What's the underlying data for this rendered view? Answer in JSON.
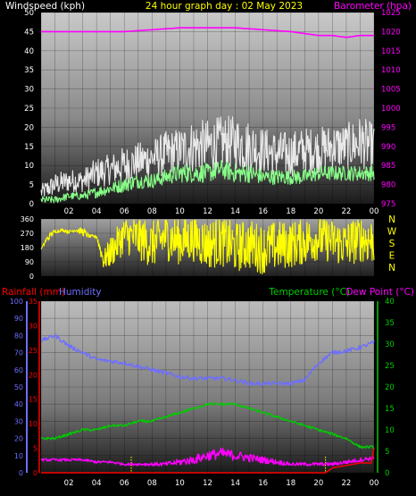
{
  "colors": {
    "background": "#000000",
    "windspeed_label": "#ffffff",
    "title": "#ffff00",
    "barometer": "#ff00ff",
    "wind_direction": "#ffff00",
    "compass_letters": "#ffff00",
    "rainfall": "#ff0000",
    "humidity": "#6e6eff",
    "temperature": "#00cc00",
    "dew_point": "#ff00ff",
    "gust": "#e8e8e8",
    "avg_wind": "#88ff88",
    "white_axis": "#ffffff"
  },
  "chart_data": [
    {
      "type": "line",
      "id": "wind-baro",
      "title": "24 hour graph day : 02 May 2023",
      "left_axis_label": "Windspeed (kph)",
      "right_axis_label": "Barometer (hpa)",
      "x_tick_labels": [
        "02",
        "04",
        "06",
        "08",
        "10",
        "12",
        "14",
        "16",
        "18",
        "20",
        "22",
        "00"
      ],
      "x_range_hours": [
        0,
        24
      ],
      "ylim_left": [
        0,
        50
      ],
      "y_ticks_left": [
        "0",
        "5",
        "10",
        "15",
        "20",
        "25",
        "30",
        "35",
        "40",
        "45",
        "50"
      ],
      "ylim_right": [
        975,
        1025
      ],
      "y_ticks_right": [
        "975",
        "980",
        "985",
        "990",
        "995",
        "1000",
        "1005",
        "1010",
        "1015",
        "1020",
        "1025"
      ],
      "grid": true,
      "series": [
        {
          "name": "Barometer",
          "axis": "right",
          "color": "#ff00ff",
          "x": [
            0,
            2,
            4,
            6,
            8,
            10,
            12,
            14,
            16,
            18,
            20,
            21,
            22,
            23,
            24
          ],
          "y": [
            1020,
            1020,
            1020,
            1020,
            1020.5,
            1021,
            1021,
            1021,
            1020.5,
            1020,
            1019,
            1019,
            1018.5,
            1019,
            1019
          ]
        },
        {
          "name": "Gust",
          "axis": "left",
          "color": "#e8e8e8",
          "noisy": true,
          "x": [
            0,
            1,
            2,
            3,
            4,
            5,
            6,
            7,
            8,
            9,
            10,
            11,
            12,
            13,
            14,
            15,
            16,
            17,
            18,
            19,
            20,
            21,
            22,
            23,
            24
          ],
          "y": [
            3,
            5,
            6,
            6,
            8,
            9,
            10,
            11,
            12,
            13,
            14,
            15,
            15,
            16,
            16,
            15,
            14,
            13,
            13,
            14,
            14,
            15,
            15,
            16,
            15
          ],
          "amp": [
            2,
            3,
            3,
            3,
            4,
            4,
            5,
            5,
            5,
            6,
            6,
            7,
            7,
            7,
            7,
            7,
            6,
            6,
            6,
            6,
            6,
            6,
            6,
            7,
            6
          ]
        },
        {
          "name": "Average wind",
          "axis": "left",
          "color": "#88ff88",
          "noisy": true,
          "x": [
            0,
            1,
            2,
            3,
            4,
            5,
            6,
            7,
            8,
            9,
            10,
            11,
            12,
            13,
            14,
            15,
            16,
            17,
            18,
            19,
            20,
            21,
            22,
            23,
            24
          ],
          "y": [
            1,
            1,
            2,
            2,
            3,
            4,
            5,
            6,
            6,
            7,
            8,
            8,
            8,
            9,
            8,
            8,
            7,
            7,
            7,
            7,
            8,
            8,
            8,
            8,
            8
          ],
          "amp": [
            1,
            1,
            1,
            1,
            1.5,
            1.5,
            2,
            2,
            2,
            2,
            2.5,
            2.5,
            2.5,
            2.5,
            2.5,
            2.5,
            2,
            2,
            2,
            2,
            2,
            2,
            2,
            2,
            2
          ]
        }
      ]
    },
    {
      "type": "line",
      "id": "wind-direction",
      "x_range_hours": [
        0,
        24
      ],
      "ylim": [
        0,
        360
      ],
      "y_ticks": [
        "0",
        "90",
        "180",
        "270",
        "360"
      ],
      "compass_labels": [
        "N",
        "W",
        "S",
        "E",
        "N"
      ],
      "grid": true,
      "series": [
        {
          "name": "Wind direction",
          "color": "#ffff00",
          "noisy": true,
          "x": [
            0,
            0.4,
            0.8,
            1,
            1.5,
            2,
            2.5,
            3,
            3.5,
            4,
            4.5,
            5,
            6,
            7,
            8,
            9,
            10,
            11,
            12,
            13,
            14,
            15,
            16,
            17,
            18,
            19,
            20,
            21,
            22,
            23,
            24
          ],
          "y": [
            170,
            230,
            270,
            280,
            290,
            280,
            290,
            280,
            250,
            250,
            100,
            150,
            260,
            240,
            200,
            250,
            220,
            240,
            200,
            220,
            180,
            200,
            170,
            190,
            200,
            220,
            240,
            220,
            200,
            240,
            220
          ],
          "swing": [
            0,
            20,
            20,
            10,
            10,
            10,
            10,
            30,
            10,
            10,
            60,
            100,
            120,
            140,
            150,
            150,
            150,
            150,
            160,
            160,
            160,
            160,
            160,
            160,
            150,
            150,
            140,
            140,
            150,
            150,
            150
          ]
        }
      ]
    },
    {
      "type": "line",
      "id": "rain-hum-temp",
      "left_axis_label": "Rainfall (mm)",
      "humidity_label": "Humidity",
      "temperature_label": "Temperature (°C)",
      "dew_point_label": "Dew Point (°C)",
      "x_tick_labels": [
        "02",
        "04",
        "06",
        "08",
        "10",
        "12",
        "14",
        "16",
        "18",
        "20",
        "22",
        "00"
      ],
      "x_range_hours": [
        0,
        24
      ],
      "ylim_humidity": [
        0,
        100
      ],
      "y_ticks_humidity": [
        "0",
        "10",
        "20",
        "30",
        "40",
        "50",
        "60",
        "70",
        "80",
        "90",
        "100"
      ],
      "ylim_rain": [
        0,
        35
      ],
      "y_ticks_rain": [
        "0",
        "5",
        "10",
        "15",
        "20",
        "25",
        "30",
        "35"
      ],
      "ylim_temp": [
        0,
        40
      ],
      "y_ticks_temp": [
        "0",
        "5",
        "10",
        "15",
        "20",
        "25",
        "30",
        "35",
        "40"
      ],
      "grid": true,
      "series": [
        {
          "name": "Humidity",
          "axis": "humidity",
          "color": "#6e6eff",
          "x": [
            0,
            1,
            2,
            3,
            4,
            5,
            6,
            7,
            8,
            9,
            10,
            11,
            12,
            13,
            14,
            15,
            16,
            17,
            18,
            19,
            20,
            21,
            22,
            23,
            24
          ],
          "y": [
            77,
            80,
            74,
            70,
            66,
            65,
            64,
            62,
            60,
            58,
            56,
            55,
            55,
            55,
            54,
            52,
            52,
            52,
            52,
            54,
            64,
            70,
            71,
            73,
            76
          ]
        },
        {
          "name": "Temperature",
          "axis": "temp",
          "color": "#00cc00",
          "x": [
            0,
            1,
            2,
            3,
            4,
            5,
            6,
            7,
            8,
            9,
            10,
            11,
            12,
            13,
            14,
            15,
            16,
            17,
            18,
            19,
            20,
            21,
            22,
            23,
            24
          ],
          "y": [
            8,
            8,
            9,
            10,
            10,
            11,
            11,
            12,
            12,
            13,
            14,
            15,
            16,
            16,
            16,
            15,
            14,
            13,
            12,
            11,
            10,
            9,
            8,
            6,
            6
          ]
        },
        {
          "name": "Dew Point",
          "axis": "temp",
          "color": "#ff00ff",
          "noisy": true,
          "x": [
            0,
            1,
            2,
            3,
            4,
            5,
            6,
            7,
            8,
            9,
            10,
            11,
            12,
            13,
            14,
            15,
            16,
            17,
            18,
            19,
            20,
            21,
            22,
            23,
            24
          ],
          "y": [
            3,
            3,
            3,
            3,
            2.5,
            2.5,
            2,
            2,
            2,
            2,
            2.5,
            3,
            4,
            4.5,
            4,
            3.5,
            3,
            2.5,
            2,
            2,
            2,
            2,
            2.5,
            3,
            3.5
          ],
          "amp": [
            0.3,
            0.3,
            0.3,
            0.3,
            0.3,
            0.3,
            0.3,
            0.3,
            0.4,
            0.5,
            0.8,
            1,
            1.2,
            1.3,
            1.2,
            1,
            0.8,
            0.6,
            0.4,
            0.4,
            0.4,
            0.4,
            0.5,
            0.5,
            0.5
          ]
        },
        {
          "name": "Rainfall",
          "axis": "rain",
          "color": "#ff0000",
          "x": [
            0,
            20.5,
            21,
            22,
            23,
            23.8,
            24
          ],
          "y": [
            0,
            0,
            1,
            1.5,
            2,
            2,
            5
          ]
        }
      ]
    }
  ]
}
